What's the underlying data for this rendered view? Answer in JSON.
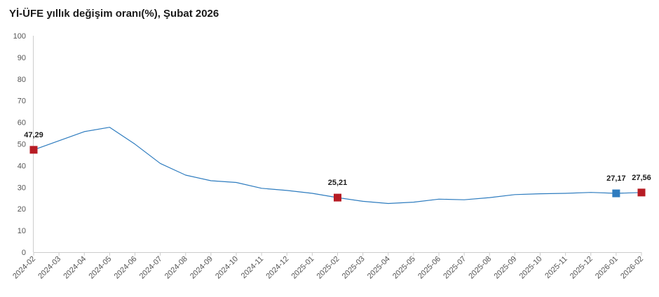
{
  "chart_data": {
    "type": "line",
    "title": "Yİ-ÜFE yıllık değişim oranı(%), Şubat 2026",
    "xlabel": "",
    "ylabel": "",
    "ylim": [
      0,
      100
    ],
    "yticks": [
      0,
      10,
      20,
      30,
      40,
      50,
      60,
      70,
      80,
      90,
      100
    ],
    "grid": false,
    "legend": "none",
    "categories": [
      "2024-02",
      "2024-03",
      "2024-04",
      "2024-05",
      "2024-06",
      "2024-07",
      "2024-08",
      "2024-09",
      "2024-10",
      "2024-11",
      "2024-12",
      "2025-01",
      "2025-02",
      "2025-03",
      "2025-04",
      "2025-05",
      "2025-06",
      "2025-07",
      "2025-08",
      "2025-09",
      "2025-10",
      "2025-11",
      "2025-12",
      "2026-01",
      "2026-02"
    ],
    "series": [
      {
        "color": "#2e7cbf",
        "values": [
          47.29,
          51.5,
          55.7,
          57.7,
          49.9,
          41.0,
          35.6,
          33.0,
          32.2,
          29.5,
          28.5,
          27.2,
          25.21,
          23.5,
          22.5,
          23.1,
          24.5,
          24.2,
          25.2,
          26.6,
          27.0,
          27.2,
          27.6,
          27.17,
          27.56
        ]
      }
    ],
    "highlighted_points": [
      {
        "category": "2024-02",
        "value": 47.29,
        "label": "47,29",
        "color": "#b71c24"
      },
      {
        "category": "2025-02",
        "value": 25.21,
        "label": "25,21",
        "color": "#b71c24"
      },
      {
        "category": "2026-01",
        "value": 27.17,
        "label": "27,17",
        "color": "#2e7cbf"
      },
      {
        "category": "2026-02",
        "value": 27.56,
        "label": "27,56",
        "color": "#b71c24"
      }
    ],
    "axis_color": "#cccccc",
    "tick_color": "#555555"
  }
}
